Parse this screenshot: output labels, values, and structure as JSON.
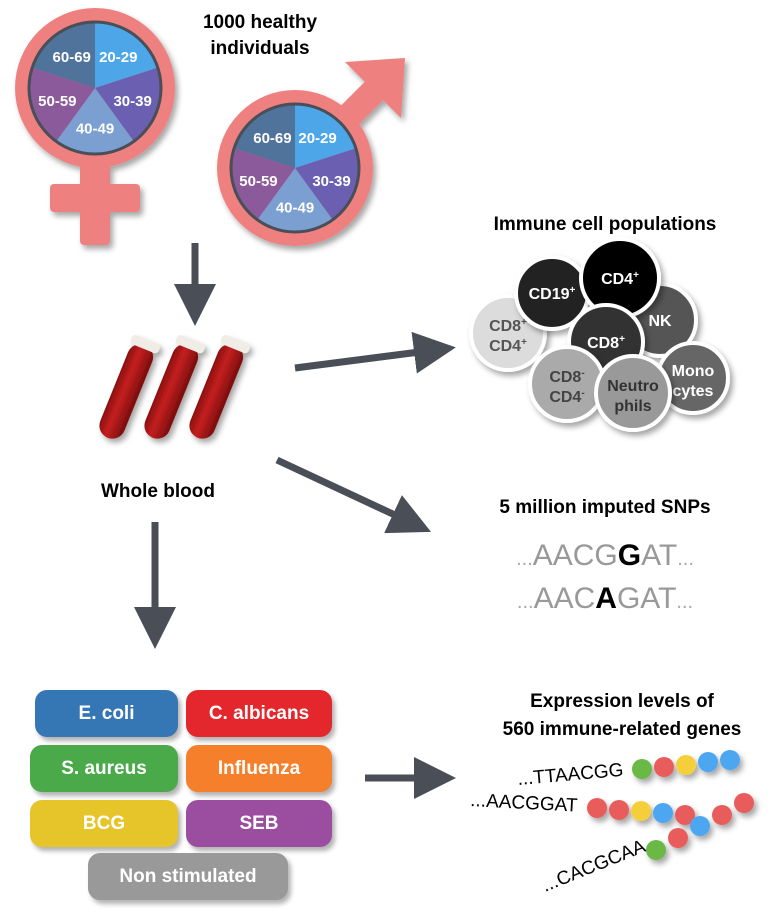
{
  "cohort": {
    "title_line1": "1000 healthy",
    "title_line2": "individuals",
    "age_groups": [
      "20-29",
      "30-39",
      "40-49",
      "50-59",
      "60-69"
    ],
    "age_colors": [
      "#4da6e8",
      "#6a5fb0",
      "#7a9fd0",
      "#8a5a9a",
      "#50739c"
    ],
    "symbol_color": "#ee8080"
  },
  "blood": {
    "label": "Whole blood"
  },
  "cells": {
    "title": "Immune cell populations",
    "items": [
      {
        "l1": "CD8",
        "s1": "+",
        "l2": "CD4",
        "s2": "+",
        "fill": "#dcdcdc",
        "text": "#555555"
      },
      {
        "l1": "CD19",
        "s1": "+",
        "l2": "",
        "s2": "",
        "fill": "#222222",
        "text": "#ffffff"
      },
      {
        "l1": "NK",
        "s1": "",
        "l2": "",
        "s2": "",
        "fill": "#555555",
        "text": "#ffffff"
      },
      {
        "l1": "CD4",
        "s1": "+",
        "l2": "",
        "s2": "",
        "fill": "#000000",
        "text": "#ffffff"
      },
      {
        "l1": "CD8",
        "s1": "+",
        "l2": "",
        "s2": "",
        "fill": "#333333",
        "text": "#ffffff"
      },
      {
        "l1": "CD8",
        "s1": "-",
        "l2": "CD4",
        "s2": "-",
        "fill": "#aaaaaa",
        "text": "#444444"
      },
      {
        "l1": "Mono",
        "s1": "",
        "l2": "cytes",
        "s2": "",
        "fill": "#666666",
        "text": "#ffffff"
      },
      {
        "l1": "Neutro",
        "s1": "",
        "l2": "phils",
        "s2": "",
        "fill": "#999999",
        "text": "#333333"
      }
    ]
  },
  "snps": {
    "title": "5 million imputed SNPs",
    "seq1": {
      "pre": "AACG",
      "snp": "G",
      "post": "AT"
    },
    "seq2": {
      "pre": "AAC",
      "snp": "A",
      "post": "GAT"
    },
    "dots": "..."
  },
  "stimuli": [
    {
      "label": "E. coli",
      "color": "#3577b5"
    },
    {
      "label": "C. albicans",
      "color": "#e4272c"
    },
    {
      "label": "S. aureus",
      "color": "#4aaa4a"
    },
    {
      "label": "Influenza",
      "color": "#f57f2a"
    },
    {
      "label": "BCG",
      "color": "#e6c52a"
    },
    {
      "label": "SEB",
      "color": "#9b4ea0"
    },
    {
      "label": "Non stimulated",
      "color": "#999999"
    }
  ],
  "expression": {
    "title_line1": "Expression levels of",
    "title_line2": "560 immune-related genes",
    "seqs": [
      "...TTAACGG",
      "...AACGGAT",
      "...CACGCAA"
    ],
    "bead_colors": {
      "green": "#6ab845",
      "red": "#e85c5c",
      "yellow": "#f5cf3a",
      "blue": "#4ea6f0"
    }
  }
}
